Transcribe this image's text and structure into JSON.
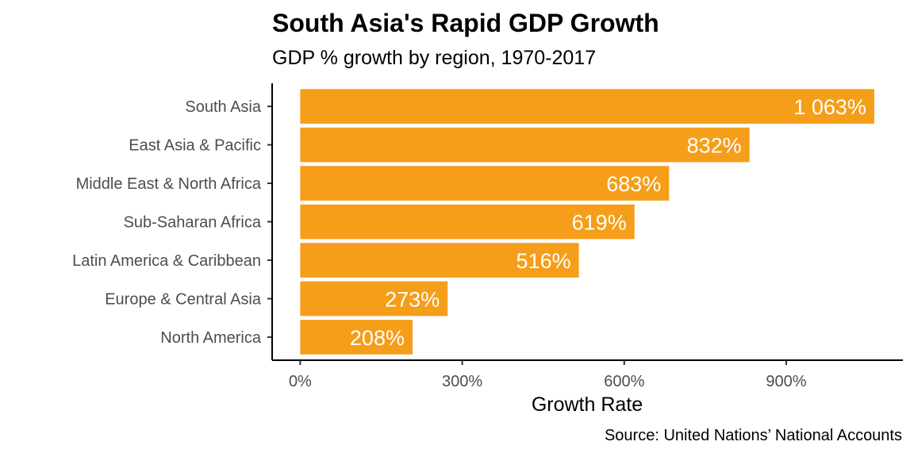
{
  "chart_data": {
    "type": "bar",
    "orientation": "horizontal",
    "title": "South Asia's Rapid GDP Growth",
    "subtitle": "GDP % growth by region, 1970-2017",
    "caption": "Source: United Nations’ National Accounts",
    "xlabel": "Growth Rate",
    "ylabel": "",
    "categories": [
      "South Asia",
      "East Asia & Pacific",
      "Middle East & North Africa",
      "Sub-Saharan Africa",
      "Latin America & Caribbean",
      "Europe & Central Asia",
      "North America"
    ],
    "values": [
      1063,
      832,
      683,
      619,
      516,
      273,
      208
    ],
    "value_labels": [
      "1 063%",
      "832%",
      "683%",
      "619%",
      "516%",
      "273%",
      "208%"
    ],
    "xlim": [
      -52,
      1116
    ],
    "xticks": [
      0,
      300,
      600,
      900
    ],
    "xtick_labels": [
      "0%",
      "300%",
      "600%",
      "900%"
    ],
    "bar_color": "#f59e1a",
    "label_color": "#ffffff",
    "grid": false,
    "legend": "none"
  }
}
